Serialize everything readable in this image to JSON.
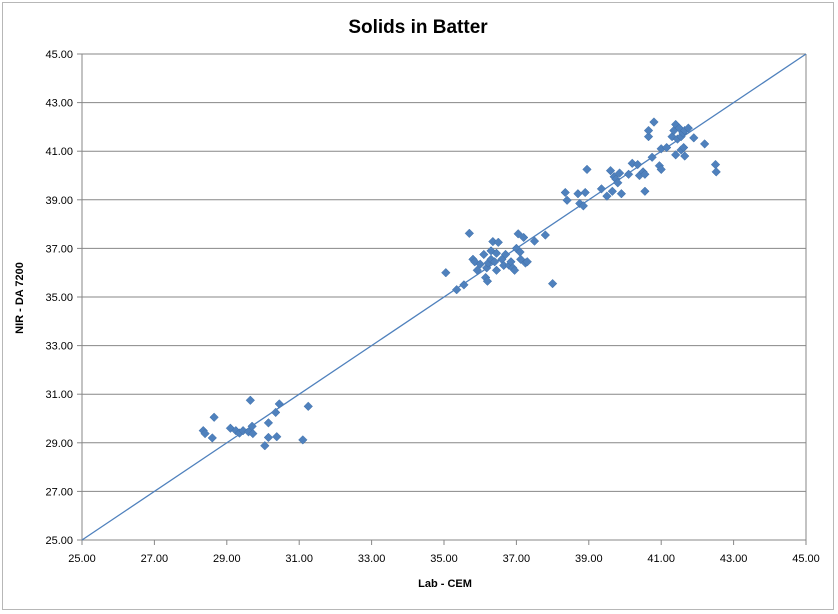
{
  "chart_data": {
    "type": "scatter",
    "title": "Solids in Batter",
    "xlabel": "Lab - CEM",
    "ylabel": "NIR - DA 7200",
    "xlim": [
      25,
      45
    ],
    "ylim": [
      25,
      45
    ],
    "x_ticks": [
      "25.00",
      "27.00",
      "29.00",
      "31.00",
      "33.00",
      "35.00",
      "37.00",
      "39.00",
      "41.00",
      "43.00",
      "45.00"
    ],
    "y_ticks": [
      "25.00",
      "27.00",
      "29.00",
      "31.00",
      "33.00",
      "35.00",
      "37.00",
      "39.00",
      "41.00",
      "43.00",
      "45.00"
    ],
    "grid": "horizontal",
    "legend": "none",
    "marker": "diamond",
    "color": "#4f81bd",
    "reference_line": {
      "from": [
        25,
        25
      ],
      "to": [
        45,
        45
      ]
    },
    "points": [
      [
        28.35,
        29.5
      ],
      [
        28.4,
        29.38
      ],
      [
        28.6,
        29.2
      ],
      [
        28.65,
        30.05
      ],
      [
        29.1,
        29.6
      ],
      [
        29.25,
        29.5
      ],
      [
        29.35,
        29.4
      ],
      [
        29.45,
        29.5
      ],
      [
        29.6,
        29.45
      ],
      [
        29.65,
        30.75
      ],
      [
        29.7,
        29.68
      ],
      [
        29.72,
        29.38
      ],
      [
        30.05,
        28.88
      ],
      [
        30.15,
        29.22
      ],
      [
        30.15,
        29.82
      ],
      [
        30.35,
        30.25
      ],
      [
        30.38,
        29.25
      ],
      [
        30.45,
        30.6
      ],
      [
        31.1,
        29.12
      ],
      [
        31.25,
        30.5
      ],
      [
        35.05,
        36.0
      ],
      [
        35.35,
        35.3
      ],
      [
        35.55,
        35.5
      ],
      [
        35.7,
        37.62
      ],
      [
        35.8,
        36.55
      ],
      [
        35.85,
        36.45
      ],
      [
        35.92,
        36.1
      ],
      [
        36.0,
        36.35
      ],
      [
        36.1,
        36.75
      ],
      [
        36.15,
        35.8
      ],
      [
        36.18,
        36.2
      ],
      [
        36.2,
        35.65
      ],
      [
        36.22,
        36.4
      ],
      [
        36.3,
        36.55
      ],
      [
        36.3,
        36.9
      ],
      [
        36.35,
        37.28
      ],
      [
        36.4,
        36.45
      ],
      [
        36.45,
        36.8
      ],
      [
        36.45,
        36.1
      ],
      [
        36.5,
        37.25
      ],
      [
        36.6,
        36.55
      ],
      [
        36.65,
        36.3
      ],
      [
        36.7,
        36.75
      ],
      [
        36.8,
        36.3
      ],
      [
        36.85,
        36.45
      ],
      [
        36.9,
        36.2
      ],
      [
        36.95,
        36.1
      ],
      [
        37.0,
        37.0
      ],
      [
        37.05,
        37.6
      ],
      [
        37.1,
        36.85
      ],
      [
        37.12,
        36.55
      ],
      [
        37.2,
        37.45
      ],
      [
        37.25,
        36.4
      ],
      [
        37.3,
        36.45
      ],
      [
        37.5,
        37.3
      ],
      [
        37.8,
        37.55
      ],
      [
        38.0,
        35.55
      ],
      [
        38.35,
        39.3
      ],
      [
        38.4,
        38.98
      ],
      [
        38.7,
        39.25
      ],
      [
        38.75,
        38.85
      ],
      [
        38.85,
        38.75
      ],
      [
        38.9,
        39.3
      ],
      [
        38.95,
        40.25
      ],
      [
        39.35,
        39.45
      ],
      [
        39.5,
        39.15
      ],
      [
        39.6,
        40.2
      ],
      [
        39.65,
        39.35
      ],
      [
        39.7,
        39.95
      ],
      [
        39.75,
        39.85
      ],
      [
        39.8,
        39.7
      ],
      [
        39.85,
        40.1
      ],
      [
        39.9,
        39.25
      ],
      [
        40.1,
        40.05
      ],
      [
        40.2,
        40.5
      ],
      [
        40.35,
        40.45
      ],
      [
        40.4,
        40.0
      ],
      [
        40.5,
        40.15
      ],
      [
        40.55,
        39.35
      ],
      [
        40.55,
        40.05
      ],
      [
        40.65,
        41.6
      ],
      [
        40.65,
        41.85
      ],
      [
        40.75,
        40.75
      ],
      [
        40.8,
        42.2
      ],
      [
        40.95,
        40.4
      ],
      [
        41.0,
        41.1
      ],
      [
        41.0,
        40.25
      ],
      [
        41.15,
        41.15
      ],
      [
        41.3,
        41.6
      ],
      [
        41.35,
        41.85
      ],
      [
        41.4,
        42.1
      ],
      [
        41.4,
        40.85
      ],
      [
        41.45,
        41.5
      ],
      [
        41.5,
        41.95
      ],
      [
        41.55,
        41.6
      ],
      [
        41.55,
        41.05
      ],
      [
        41.6,
        41.75
      ],
      [
        41.62,
        41.15
      ],
      [
        41.65,
        41.85
      ],
      [
        41.65,
        40.8
      ],
      [
        41.75,
        41.95
      ],
      [
        41.9,
        41.55
      ],
      [
        42.2,
        41.3
      ],
      [
        42.5,
        40.45
      ],
      [
        42.52,
        40.15
      ]
    ]
  }
}
